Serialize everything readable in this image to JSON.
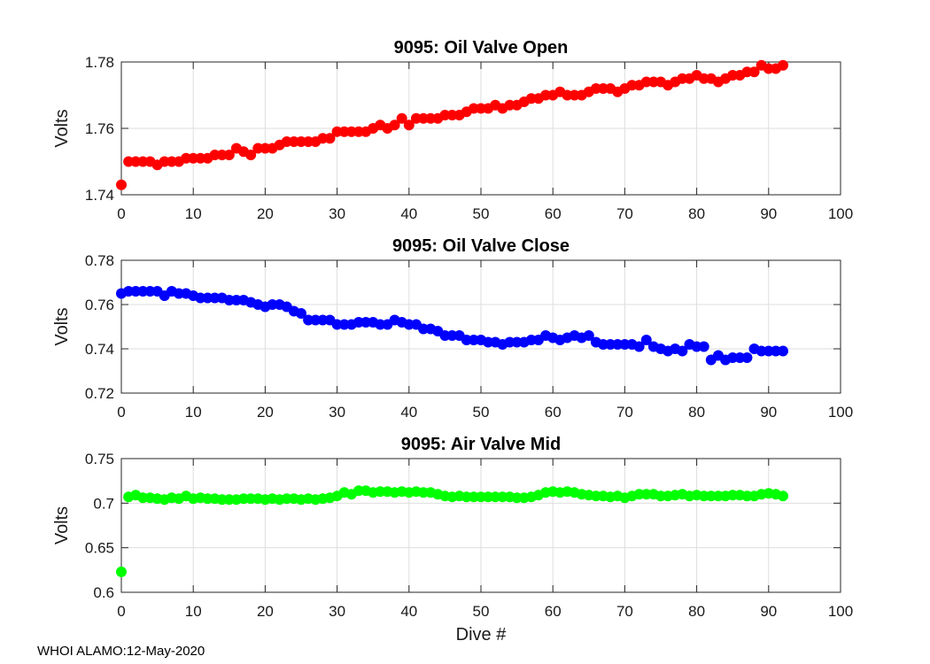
{
  "footer": "WHOI ALAMO:12-May-2020",
  "chart_data": [
    {
      "type": "scatter",
      "title": "9095: Oil Valve Open",
      "xlabel": "",
      "ylabel": "Volts",
      "xlim": [
        0,
        100
      ],
      "ylim": [
        1.74,
        1.78
      ],
      "xticks": [
        0,
        10,
        20,
        30,
        40,
        50,
        60,
        70,
        80,
        90,
        100
      ],
      "yticks": [
        1.74,
        1.76,
        1.78
      ],
      "ytick_labels": [
        "1.74",
        "1.76",
        "1.78"
      ],
      "grid": true,
      "color": "#ff0000",
      "x": [
        0,
        1,
        2,
        3,
        4,
        5,
        6,
        7,
        8,
        9,
        10,
        11,
        12,
        13,
        14,
        15,
        16,
        17,
        18,
        19,
        20,
        21,
        22,
        23,
        24,
        25,
        26,
        27,
        28,
        29,
        30,
        31,
        32,
        33,
        34,
        35,
        36,
        37,
        38,
        39,
        40,
        41,
        42,
        43,
        44,
        45,
        46,
        47,
        48,
        49,
        50,
        51,
        52,
        53,
        54,
        55,
        56,
        57,
        58,
        59,
        60,
        61,
        62,
        63,
        64,
        65,
        66,
        67,
        68,
        69,
        70,
        71,
        72,
        73,
        74,
        75,
        76,
        77,
        78,
        79,
        80,
        81,
        82,
        83,
        84,
        85,
        86,
        87,
        88,
        89,
        90,
        91,
        92
      ],
      "y": [
        1.743,
        1.75,
        1.75,
        1.75,
        1.75,
        1.749,
        1.75,
        1.75,
        1.75,
        1.751,
        1.751,
        1.751,
        1.751,
        1.752,
        1.752,
        1.752,
        1.754,
        1.753,
        1.752,
        1.754,
        1.754,
        1.754,
        1.755,
        1.756,
        1.756,
        1.756,
        1.756,
        1.756,
        1.757,
        1.757,
        1.759,
        1.759,
        1.759,
        1.759,
        1.759,
        1.76,
        1.761,
        1.76,
        1.761,
        1.763,
        1.761,
        1.763,
        1.763,
        1.763,
        1.763,
        1.764,
        1.764,
        1.764,
        1.765,
        1.766,
        1.766,
        1.766,
        1.767,
        1.766,
        1.767,
        1.767,
        1.768,
        1.769,
        1.769,
        1.77,
        1.77,
        1.771,
        1.77,
        1.77,
        1.77,
        1.771,
        1.772,
        1.772,
        1.772,
        1.771,
        1.772,
        1.773,
        1.773,
        1.774,
        1.774,
        1.774,
        1.773,
        1.774,
        1.775,
        1.775,
        1.776,
        1.775,
        1.775,
        1.774,
        1.775,
        1.776,
        1.776,
        1.777,
        1.777,
        1.779,
        1.778,
        1.778,
        1.779
      ]
    },
    {
      "type": "scatter",
      "title": "9095: Oil Valve Close",
      "xlabel": "",
      "ylabel": "Volts",
      "xlim": [
        0,
        100
      ],
      "ylim": [
        0.72,
        0.78
      ],
      "xticks": [
        0,
        10,
        20,
        30,
        40,
        50,
        60,
        70,
        80,
        90,
        100
      ],
      "yticks": [
        0.72,
        0.74,
        0.76,
        0.78
      ],
      "ytick_labels": [
        "0.72",
        "0.74",
        "0.76",
        "0.78"
      ],
      "grid": true,
      "color": "#0000ff",
      "x": [
        0,
        1,
        2,
        3,
        4,
        5,
        6,
        7,
        8,
        9,
        10,
        11,
        12,
        13,
        14,
        15,
        16,
        17,
        18,
        19,
        20,
        21,
        22,
        23,
        24,
        25,
        26,
        27,
        28,
        29,
        30,
        31,
        32,
        33,
        34,
        35,
        36,
        37,
        38,
        39,
        40,
        41,
        42,
        43,
        44,
        45,
        46,
        47,
        48,
        49,
        50,
        51,
        52,
        53,
        54,
        55,
        56,
        57,
        58,
        59,
        60,
        61,
        62,
        63,
        64,
        65,
        66,
        67,
        68,
        69,
        70,
        71,
        72,
        73,
        74,
        75,
        76,
        77,
        78,
        79,
        80,
        81,
        82,
        83,
        84,
        85,
        86,
        87,
        88,
        89,
        90,
        91,
        92
      ],
      "y": [
        0.765,
        0.766,
        0.766,
        0.766,
        0.766,
        0.766,
        0.764,
        0.766,
        0.765,
        0.765,
        0.764,
        0.763,
        0.763,
        0.763,
        0.763,
        0.762,
        0.762,
        0.762,
        0.761,
        0.76,
        0.759,
        0.76,
        0.76,
        0.759,
        0.757,
        0.756,
        0.753,
        0.753,
        0.753,
        0.753,
        0.751,
        0.751,
        0.751,
        0.752,
        0.752,
        0.752,
        0.751,
        0.751,
        0.753,
        0.752,
        0.751,
        0.751,
        0.749,
        0.749,
        0.748,
        0.746,
        0.746,
        0.746,
        0.744,
        0.744,
        0.744,
        0.743,
        0.743,
        0.742,
        0.743,
        0.743,
        0.743,
        0.744,
        0.744,
        0.746,
        0.745,
        0.744,
        0.745,
        0.746,
        0.745,
        0.746,
        0.743,
        0.742,
        0.742,
        0.742,
        0.742,
        0.742,
        0.741,
        0.744,
        0.741,
        0.74,
        0.739,
        0.74,
        0.739,
        0.742,
        0.741,
        0.741,
        0.735,
        0.737,
        0.735,
        0.736,
        0.736,
        0.736,
        0.74,
        0.739,
        0.739,
        0.739,
        0.739
      ]
    },
    {
      "type": "scatter",
      "title": "9095: Air Valve Mid",
      "xlabel": "Dive #",
      "ylabel": "Volts",
      "xlim": [
        0,
        100
      ],
      "ylim": [
        0.6,
        0.75
      ],
      "xticks": [
        0,
        10,
        20,
        30,
        40,
        50,
        60,
        70,
        80,
        90,
        100
      ],
      "yticks": [
        0.6,
        0.65,
        0.7,
        0.75
      ],
      "ytick_labels": [
        "0.6",
        "0.65",
        "0.7",
        "0.75"
      ],
      "grid": true,
      "color": "#00ff00",
      "x": [
        0,
        1,
        2,
        3,
        4,
        5,
        6,
        7,
        8,
        9,
        10,
        11,
        12,
        13,
        14,
        15,
        16,
        17,
        18,
        19,
        20,
        21,
        22,
        23,
        24,
        25,
        26,
        27,
        28,
        29,
        30,
        31,
        32,
        33,
        34,
        35,
        36,
        37,
        38,
        39,
        40,
        41,
        42,
        43,
        44,
        45,
        46,
        47,
        48,
        49,
        50,
        51,
        52,
        53,
        54,
        55,
        56,
        57,
        58,
        59,
        60,
        61,
        62,
        63,
        64,
        65,
        66,
        67,
        68,
        69,
        70,
        71,
        72,
        73,
        74,
        75,
        76,
        77,
        78,
        79,
        80,
        81,
        82,
        83,
        84,
        85,
        86,
        87,
        88,
        89,
        90,
        91,
        92
      ],
      "y": [
        0.623,
        0.707,
        0.709,
        0.706,
        0.706,
        0.705,
        0.704,
        0.706,
        0.705,
        0.708,
        0.705,
        0.706,
        0.705,
        0.705,
        0.704,
        0.704,
        0.704,
        0.705,
        0.705,
        0.705,
        0.704,
        0.705,
        0.704,
        0.705,
        0.705,
        0.704,
        0.705,
        0.704,
        0.705,
        0.706,
        0.708,
        0.712,
        0.71,
        0.714,
        0.714,
        0.712,
        0.713,
        0.713,
        0.712,
        0.713,
        0.712,
        0.713,
        0.712,
        0.712,
        0.71,
        0.708,
        0.707,
        0.708,
        0.707,
        0.707,
        0.707,
        0.707,
        0.707,
        0.707,
        0.707,
        0.706,
        0.706,
        0.707,
        0.709,
        0.712,
        0.713,
        0.712,
        0.713,
        0.712,
        0.71,
        0.709,
        0.708,
        0.708,
        0.707,
        0.708,
        0.706,
        0.708,
        0.71,
        0.71,
        0.71,
        0.708,
        0.708,
        0.709,
        0.71,
        0.708,
        0.709,
        0.708,
        0.708,
        0.708,
        0.708,
        0.709,
        0.709,
        0.708,
        0.708,
        0.71,
        0.711,
        0.71,
        0.708
      ]
    }
  ]
}
